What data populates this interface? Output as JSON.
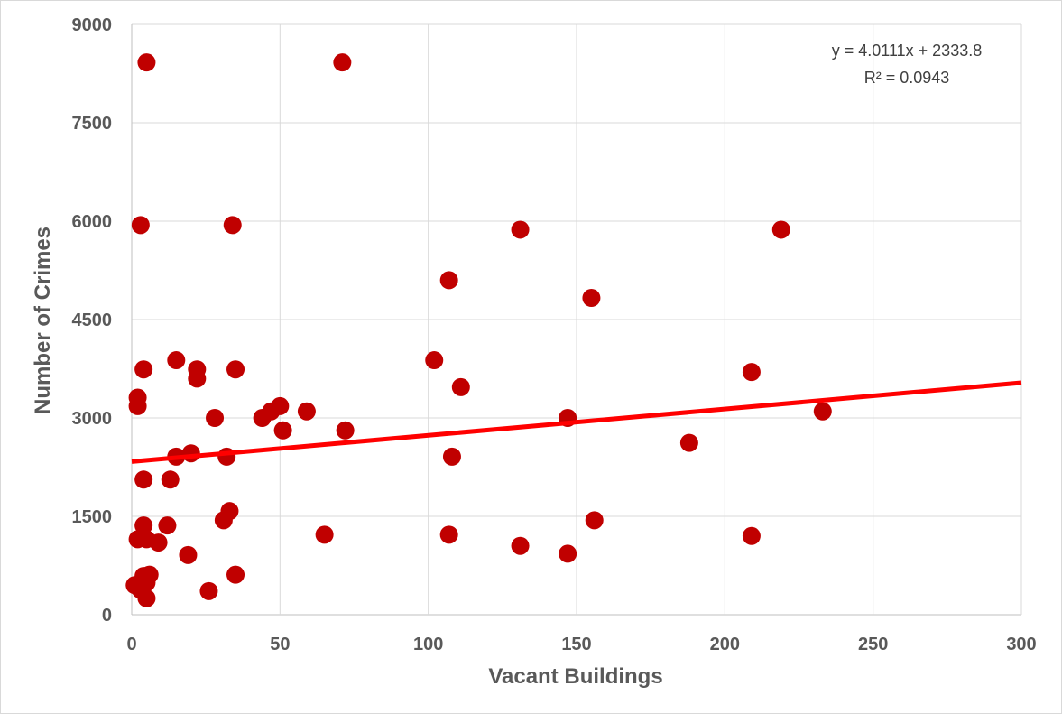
{
  "chart_data": {
    "type": "scatter",
    "xlabel": "Vacant Buildings",
    "ylabel": "Number of Crimes",
    "xlim": [
      0,
      300
    ],
    "ylim": [
      0,
      9000
    ],
    "x_ticks": [
      0,
      50,
      100,
      150,
      200,
      250,
      300
    ],
    "y_ticks": [
      0,
      1500,
      3000,
      4500,
      6000,
      7500,
      9000
    ],
    "x_tick_labels": [
      "0",
      "50",
      "100",
      "150",
      "200",
      "250",
      "300"
    ],
    "y_tick_labels": [
      "0",
      "1500",
      "3000",
      "4500",
      "6000",
      "7500",
      "9000"
    ],
    "grid": {
      "horizontal": true,
      "vertical": true
    },
    "marker_color": "#c00000",
    "trendline": {
      "type": "linear",
      "slope": 4.0111,
      "intercept": 2333.8,
      "x_range": [
        0,
        300
      ],
      "color": "#ff0000",
      "equation": "y = 4.0111x + 2333.8",
      "r_squared": "R² = 0.0943"
    },
    "points": [
      {
        "x": 5,
        "y": 8420
      },
      {
        "x": 71,
        "y": 8420
      },
      {
        "x": 3,
        "y": 5940
      },
      {
        "x": 34,
        "y": 5940
      },
      {
        "x": 131,
        "y": 5870
      },
      {
        "x": 219,
        "y": 5870
      },
      {
        "x": 107,
        "y": 5100
      },
      {
        "x": 155,
        "y": 4830
      },
      {
        "x": 15,
        "y": 3880
      },
      {
        "x": 102,
        "y": 3880
      },
      {
        "x": 4,
        "y": 3740
      },
      {
        "x": 22,
        "y": 3740
      },
      {
        "x": 35,
        "y": 3740
      },
      {
        "x": 209,
        "y": 3700
      },
      {
        "x": 22,
        "y": 3600
      },
      {
        "x": 111,
        "y": 3470
      },
      {
        "x": 2,
        "y": 3310
      },
      {
        "x": 2,
        "y": 3180
      },
      {
        "x": 50,
        "y": 3180
      },
      {
        "x": 47,
        "y": 3100
      },
      {
        "x": 59,
        "y": 3100
      },
      {
        "x": 233,
        "y": 3100
      },
      {
        "x": 28,
        "y": 3000
      },
      {
        "x": 44,
        "y": 3000
      },
      {
        "x": 147,
        "y": 3000
      },
      {
        "x": 51,
        "y": 2810
      },
      {
        "x": 72,
        "y": 2810
      },
      {
        "x": 188,
        "y": 2620
      },
      {
        "x": 20,
        "y": 2460
      },
      {
        "x": 15,
        "y": 2410
      },
      {
        "x": 32,
        "y": 2410
      },
      {
        "x": 108,
        "y": 2410
      },
      {
        "x": 4,
        "y": 2060
      },
      {
        "x": 13,
        "y": 2060
      },
      {
        "x": 33,
        "y": 1580
      },
      {
        "x": 31,
        "y": 1440
      },
      {
        "x": 156,
        "y": 1440
      },
      {
        "x": 4,
        "y": 1360
      },
      {
        "x": 12,
        "y": 1360
      },
      {
        "x": 65,
        "y": 1220
      },
      {
        "x": 107,
        "y": 1220
      },
      {
        "x": 209,
        "y": 1200
      },
      {
        "x": 2,
        "y": 1150
      },
      {
        "x": 5,
        "y": 1150
      },
      {
        "x": 9,
        "y": 1100
      },
      {
        "x": 131,
        "y": 1050
      },
      {
        "x": 19,
        "y": 910
      },
      {
        "x": 147,
        "y": 930
      },
      {
        "x": 4,
        "y": 590
      },
      {
        "x": 6,
        "y": 610
      },
      {
        "x": 35,
        "y": 610
      },
      {
        "x": 5,
        "y": 490
      },
      {
        "x": 1,
        "y": 450
      },
      {
        "x": 3,
        "y": 380
      },
      {
        "x": 26,
        "y": 360
      },
      {
        "x": 5,
        "y": 250
      }
    ]
  }
}
